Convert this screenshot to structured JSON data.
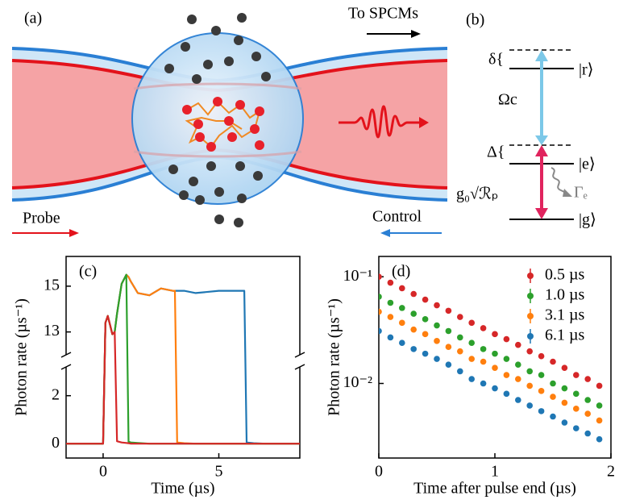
{
  "diagram_a": {
    "label": "(a)",
    "to_detector": "To SPCMs",
    "probe": "Probe",
    "control": "Control"
  },
  "diagram_b": {
    "label": "(b)",
    "levels": [
      "|r⟩",
      "|e⟩",
      "|g⟩"
    ],
    "detunings": [
      "δ{",
      "Δ{"
    ],
    "couplings": [
      "Ωc",
      "g₀√ℛₚ"
    ],
    "decay": "Γₑ"
  },
  "chart_data": [
    {
      "type": "line",
      "panel_label": "(c)",
      "xlabel": "Time (µs)",
      "ylabel": "Photon rate (µs⁻¹)",
      "x": [
        -1.6,
        -1,
        -0.5,
        0,
        0.1,
        0.2,
        0.3,
        0.4,
        0.5,
        0.6,
        0.8,
        1.0,
        1.1,
        1.2,
        1.5,
        2,
        2.5,
        3,
        3.1,
        3.2,
        3.5,
        4,
        5,
        6,
        6.1,
        6.2,
        6.5,
        7,
        8,
        8.5
      ],
      "series": [
        {
          "color": "#1f77b4",
          "values": [
            0,
            0,
            0,
            0,
            13.4,
            13.7,
            13.3,
            12.9,
            13.0,
            13.8,
            15.1,
            15.5,
            15.4,
            15.2,
            14.7,
            14.6,
            14.9,
            14.8,
            14.8,
            14.8,
            14.8,
            14.7,
            14.8,
            14.8,
            14.8,
            0.05,
            0.02,
            0,
            0,
            0
          ]
        },
        {
          "color": "#ff7f0e",
          "values": [
            0,
            0,
            0,
            0,
            13.4,
            13.7,
            13.3,
            12.9,
            13.0,
            13.8,
            15.1,
            15.5,
            15.4,
            15.2,
            14.7,
            14.6,
            14.9,
            14.8,
            14.8,
            0.05,
            0.02,
            0,
            0,
            0,
            0,
            0,
            0,
            0,
            0,
            0
          ]
        },
        {
          "color": "#2ca02c",
          "values": [
            0,
            0,
            0,
            0,
            13.4,
            13.7,
            13.3,
            12.9,
            13.0,
            13.8,
            15.1,
            15.5,
            0.08,
            0.05,
            0.03,
            0,
            0,
            0,
            0,
            0,
            0,
            0,
            0,
            0,
            0,
            0,
            0,
            0,
            0,
            0
          ]
        },
        {
          "color": "#d62728",
          "values": [
            0,
            0,
            0,
            0,
            13.4,
            13.7,
            13.3,
            12.9,
            13.0,
            0.1,
            0.05,
            0.03,
            0.02,
            0,
            0,
            0,
            0,
            0,
            0,
            0,
            0,
            0,
            0,
            0,
            0,
            0,
            0,
            0,
            0,
            0
          ]
        }
      ],
      "xlim": [
        -1.6,
        8.5
      ],
      "xticks": [
        0,
        5
      ],
      "ylim": [
        -0.6,
        16.3
      ],
      "y_break": [
        3.2,
        12.0
      ],
      "yticks": [
        0,
        2,
        13,
        15
      ]
    },
    {
      "type": "scatter",
      "panel_label": "(d)",
      "xlabel": "Time after pulse end (µs)",
      "ylabel": "Photon rate (µs⁻¹)",
      "log_y": true,
      "legend": "upper right",
      "x": [
        0,
        0.1,
        0.2,
        0.3,
        0.4,
        0.5,
        0.6,
        0.7,
        0.8,
        0.9,
        1.0,
        1.1,
        1.2,
        1.3,
        1.4,
        1.5,
        1.6,
        1.7,
        1.8,
        1.9
      ],
      "series": [
        {
          "name": "0.5 µs",
          "color": "#d62728",
          "values": [
            0.1,
            0.088,
            0.078,
            0.069,
            0.061,
            0.054,
            0.048,
            0.042,
            0.037,
            0.033,
            0.029,
            0.026,
            0.023,
            0.02,
            0.018,
            0.016,
            0.014,
            0.012,
            0.011,
            0.0095
          ]
        },
        {
          "name": "1.0 µs",
          "color": "#2ca02c",
          "values": [
            0.065,
            0.057,
            0.051,
            0.045,
            0.04,
            0.035,
            0.031,
            0.027,
            0.024,
            0.021,
            0.019,
            0.017,
            0.015,
            0.013,
            0.012,
            0.01,
            0.009,
            0.008,
            0.007,
            0.0062
          ]
        },
        {
          "name": "3.1 µs",
          "color": "#ff7f0e",
          "values": [
            0.047,
            0.042,
            0.037,
            0.032,
            0.029,
            0.025,
            0.022,
            0.02,
            0.017,
            0.016,
            0.014,
            0.012,
            0.011,
            0.0095,
            0.0085,
            0.0075,
            0.0066,
            0.0058,
            0.0052,
            0.0045
          ]
        },
        {
          "name": "6.1 µs",
          "color": "#1f77b4",
          "values": [
            0.031,
            0.027,
            0.024,
            0.021,
            0.019,
            0.017,
            0.015,
            0.013,
            0.011,
            0.01,
            0.009,
            0.008,
            0.007,
            0.0062,
            0.0055,
            0.0049,
            0.0043,
            0.0038,
            0.0034,
            0.003
          ]
        }
      ],
      "xlim": [
        0,
        2
      ],
      "xticks": [
        0,
        1,
        2
      ],
      "ylim": [
        0.002,
        0.155
      ],
      "yticks": [
        {
          "value": 0.1,
          "label": "10⁻¹"
        },
        {
          "value": 0.01,
          "label": "10⁻²"
        }
      ]
    }
  ]
}
